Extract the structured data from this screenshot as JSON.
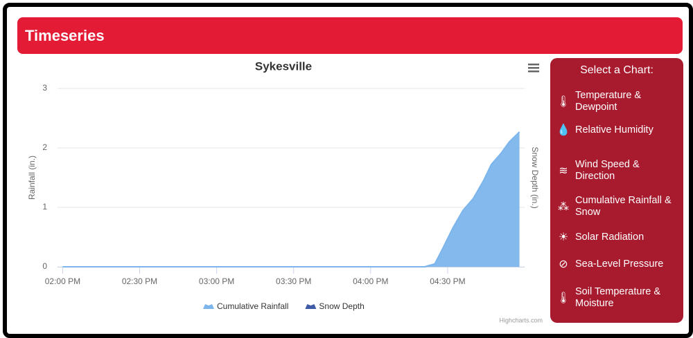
{
  "header": {
    "title": "Timeseries"
  },
  "chart_data": {
    "type": "area",
    "title": "Sykesville",
    "y_label": "Rainfall (in.)",
    "y2_label": "Snow Depth (in.)",
    "x": [
      "02:00 PM",
      "04:21 PM",
      "04:25 PM",
      "04:28 PM",
      "04:32 PM",
      "04:36 PM",
      "04:40 PM",
      "04:44 PM",
      "04:47 PM",
      "04:51 PM",
      "04:54 PM",
      "04:58 PM"
    ],
    "series": [
      {
        "name": "Cumulative Rainfall",
        "color": "#7cb5ec",
        "values": [
          0,
          0,
          0.05,
          0.3,
          0.65,
          0.95,
          1.15,
          1.45,
          1.72,
          1.92,
          2.1,
          2.27
        ]
      },
      {
        "name": "Snow Depth",
        "color": "#434348",
        "axis": "y2",
        "values": [
          null,
          null,
          null,
          null,
          null,
          null,
          null,
          null,
          null,
          null,
          null,
          null
        ]
      }
    ],
    "xlim": [
      "01:58 PM",
      "05:00 PM"
    ],
    "xticks": [
      "02:00 PM",
      "02:30 PM",
      "03:00 PM",
      "03:30 PM",
      "04:00 PM",
      "04:30 PM"
    ],
    "ylim": [
      0,
      3
    ],
    "yticks": [
      0,
      1,
      2,
      3
    ],
    "grid": true,
    "credits": "Highcharts.com"
  },
  "sidebar": {
    "title": "Select a Chart:",
    "items": [
      "Temperature & Dewpoint",
      "Relative Humidity",
      "Wind Speed & Direction",
      "Cumulative Rainfall & Snow",
      "Solar Radiation",
      "Sea-Level Pressure",
      "Soil Temperature & Moisture"
    ]
  }
}
